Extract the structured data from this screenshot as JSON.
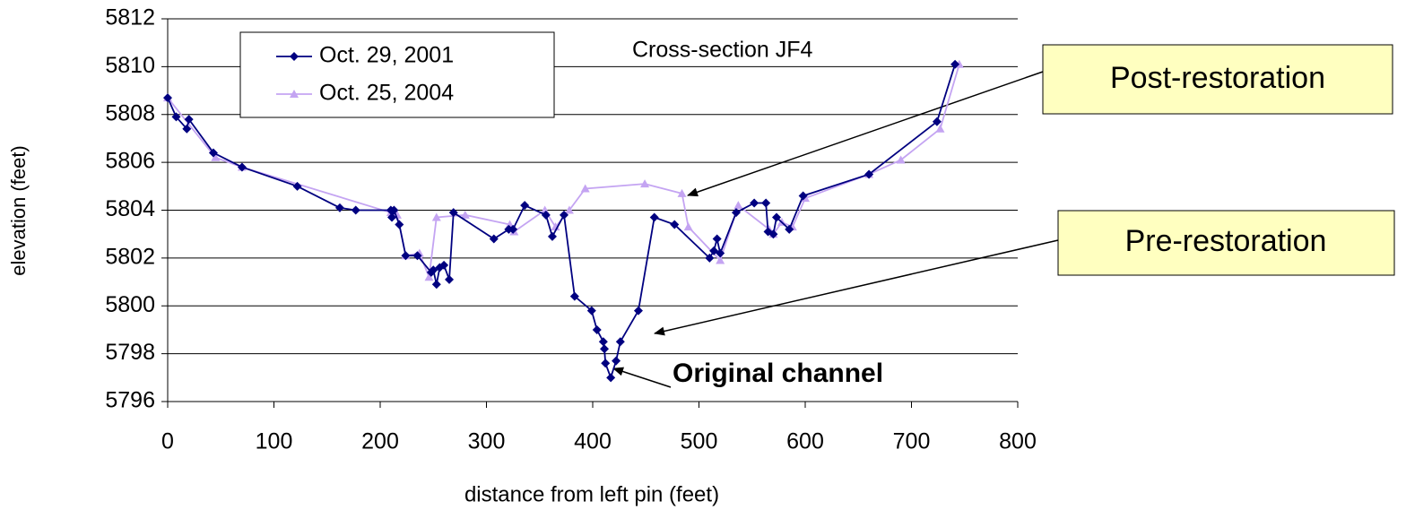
{
  "chart_data": {
    "type": "line",
    "title": "Cross-section JF4",
    "x_label": "distance from left pin (feet)",
    "y_label": "elevation (feet)",
    "xlim": [
      0,
      800
    ],
    "xticks": [
      0,
      100,
      200,
      300,
      400,
      500,
      600,
      700,
      800
    ],
    "ylim": [
      5796,
      5812
    ],
    "yticks": [
      5796,
      5798,
      5800,
      5802,
      5804,
      5806,
      5808,
      5810,
      5812
    ],
    "grid": true,
    "legend": "upper left",
    "annotations": [
      "Post-restoration",
      "Pre-restoration",
      "Original channel"
    ],
    "series": [
      {
        "name": "Oct. 29, 2001",
        "color": "#000080",
        "marker": "diamond",
        "x": [
          0,
          8,
          18,
          20,
          43,
          70,
          122,
          162,
          177,
          210,
          211,
          213,
          218,
          224,
          235,
          248,
          250,
          253,
          256,
          260,
          265,
          269,
          307,
          321,
          325,
          336,
          356,
          362,
          373,
          383,
          399,
          404,
          410,
          411,
          412,
          417,
          422,
          426,
          443,
          458,
          477,
          510,
          514,
          517,
          520,
          535,
          552,
          563,
          565,
          570,
          573,
          585,
          598,
          660,
          724,
          741
        ],
        "values": [
          5808.7,
          5807.9,
          5807.4,
          5807.8,
          5806.4,
          5805.8,
          5805.0,
          5804.1,
          5804.0,
          5804.0,
          5803.7,
          5804.0,
          5803.4,
          5802.1,
          5802.1,
          5801.4,
          5801.5,
          5800.9,
          5801.6,
          5801.7,
          5801.1,
          5803.9,
          5802.8,
          5803.2,
          5803.2,
          5804.2,
          5803.8,
          5802.9,
          5803.8,
          5800.4,
          5799.8,
          5799.0,
          5798.5,
          5798.2,
          5797.6,
          5797.0,
          5797.7,
          5798.5,
          5799.8,
          5803.7,
          5803.4,
          5802.0,
          5802.3,
          5802.8,
          5802.2,
          5803.9,
          5804.3,
          5804.3,
          5803.1,
          5803.0,
          5803.7,
          5803.2,
          5804.6,
          5805.5,
          5807.7,
          5810.1
        ]
      },
      {
        "name": "Oct. 25, 2004",
        "color": "#c4a4f2",
        "marker": "triangle",
        "x": [
          0,
          45,
          70,
          210,
          216,
          224,
          237,
          246,
          253,
          280,
          322,
          326,
          355,
          365,
          378,
          393,
          449,
          484,
          490,
          520,
          537,
          566,
          570,
          578,
          588,
          600,
          660,
          690,
          727,
          745
        ],
        "values": [
          5808.7,
          5806.2,
          5805.8,
          5803.9,
          5803.8,
          5802.1,
          5802.2,
          5801.2,
          5803.7,
          5803.8,
          5803.4,
          5803.1,
          5804.0,
          5803.3,
          5804.0,
          5804.9,
          5805.1,
          5804.7,
          5803.3,
          5801.9,
          5804.2,
          5803.2,
          5803.0,
          5803.5,
          5803.3,
          5804.5,
          5805.5,
          5806.1,
          5807.4,
          5810.1
        ]
      }
    ]
  }
}
